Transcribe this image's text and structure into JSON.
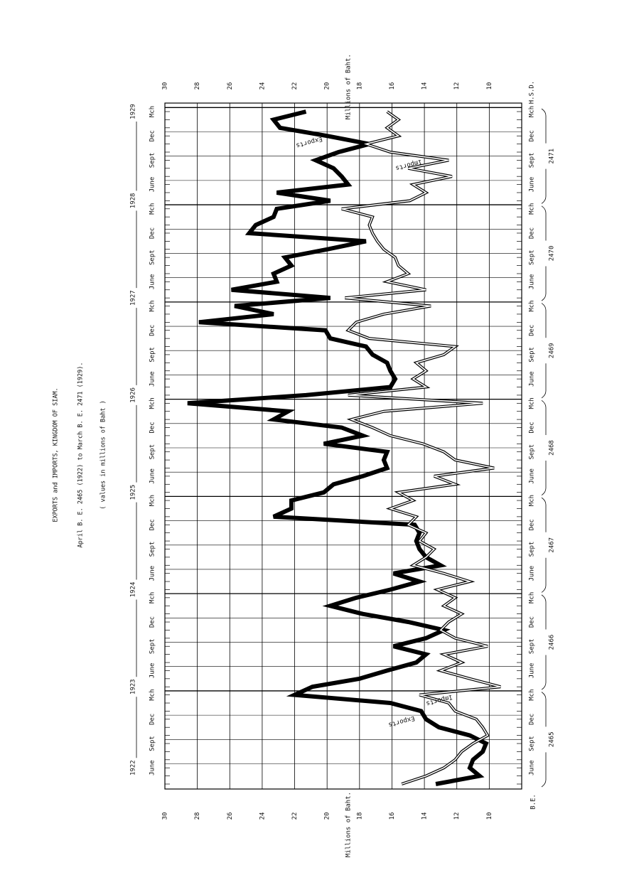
{
  "chart_data": {
    "type": "line",
    "title": "EXPORTS and IMPORTS, KINGDOM OF SIAM.",
    "subtitle": "April B. E. 2465 (1922) to March B. E. 2471 (1929).",
    "note": "( values in millions of Baht )",
    "ylabel": "Millions of Baht.",
    "ylim": [
      30,
      8
    ],
    "yticks": [
      30,
      28,
      26,
      24,
      22,
      20,
      18,
      16,
      14,
      12,
      10
    ],
    "grid": true,
    "years": [
      "1922",
      "1923",
      "1924",
      "1925",
      "1926",
      "1927",
      "1928",
      "1929"
    ],
    "be_years": [
      "2465",
      "2466",
      "2467",
      "2468",
      "2469",
      "2470",
      "2471"
    ],
    "be_label": "B.E.",
    "hsd_label": "H.S.D.",
    "categories": [
      null,
      null,
      "June",
      null,
      null,
      "Sept",
      null,
      null,
      "Dec",
      null,
      null,
      "Mch",
      null,
      null,
      "June",
      null,
      null,
      "Sept",
      null,
      null,
      "Dec",
      null,
      null,
      "Mch",
      null,
      null,
      "June",
      null,
      null,
      "Sept",
      null,
      null,
      "Dec",
      null,
      null,
      "Mch",
      null,
      null,
      "June",
      null,
      null,
      "Sept",
      null,
      null,
      "Dec",
      null,
      null,
      "Mch",
      null,
      null,
      "June",
      null,
      null,
      "Sept",
      null,
      null,
      "Dec",
      null,
      null,
      "Mch",
      null,
      null,
      "June",
      null,
      null,
      "Sept",
      null,
      null,
      "Dec",
      null,
      null,
      "Mch",
      null,
      null,
      "June",
      null,
      null,
      "Sept",
      null,
      null,
      "Dec",
      null,
      null,
      "Mch"
    ],
    "series": [
      {
        "name": "Exports",
        "color": "#000000",
        "values": [
          13.3,
          10.6,
          11.2,
          11.0,
          10.4,
          10.2,
          11.2,
          13.1,
          13.9,
          14.2,
          16.1,
          22.0,
          20.9,
          18.0,
          16.3,
          14.5,
          13.9,
          15.9,
          13.9,
          12.8,
          15.0,
          17.8,
          19.8,
          18.2,
          16.1,
          14.3,
          15.9,
          13.0,
          13.9,
          14.3,
          14.5,
          14.3,
          14.6,
          23.3,
          22.2,
          22.2,
          20.2,
          19.6,
          17.8,
          16.3,
          16.5,
          16.3,
          20.2,
          17.8,
          19.1,
          23.3,
          22.4,
          28.6,
          21.3,
          16.1,
          15.8,
          16.1,
          16.3,
          17.2,
          17.6,
          19.8,
          20.1,
          27.9,
          23.3,
          25.7,
          19.8,
          25.9,
          23.1,
          23.3,
          22.2,
          22.6,
          20.0,
          17.6,
          24.8,
          24.4,
          23.3,
          23.1,
          19.8,
          23.1,
          18.7,
          19.1,
          19.6,
          20.7,
          19.3,
          17.4,
          20.0,
          22.9,
          23.3,
          21.3
        ]
      },
      {
        "name": "Imports",
        "color": "#000000",
        "values": [
          15.4,
          13.9,
          12.8,
          12.1,
          11.7,
          11.0,
          10.1,
          10.4,
          10.8,
          12.1,
          12.5,
          14.3,
          9.3,
          11.2,
          13.0,
          11.7,
          12.8,
          10.1,
          12.1,
          13.0,
          12.5,
          11.7,
          12.8,
          12.1,
          13.2,
          11.2,
          12.8,
          14.7,
          13.9,
          13.4,
          14.3,
          13.9,
          15.0,
          14.5,
          16.1,
          14.7,
          15.6,
          12.1,
          13.4,
          9.7,
          12.1,
          12.8,
          14.1,
          16.1,
          17.2,
          18.5,
          16.5,
          10.4,
          18.7,
          13.9,
          14.7,
          13.9,
          14.5,
          12.8,
          12.1,
          17.4,
          18.7,
          18.2,
          16.5,
          13.6,
          18.9,
          13.9,
          16.3,
          15.0,
          15.6,
          15.8,
          16.5,
          16.9,
          17.2,
          17.4,
          17.2,
          19.1,
          14.9,
          13.9,
          14.7,
          12.3,
          15.0,
          12.5,
          16.1,
          17.6,
          15.6,
          16.3,
          15.6,
          16.3
        ]
      }
    ]
  }
}
